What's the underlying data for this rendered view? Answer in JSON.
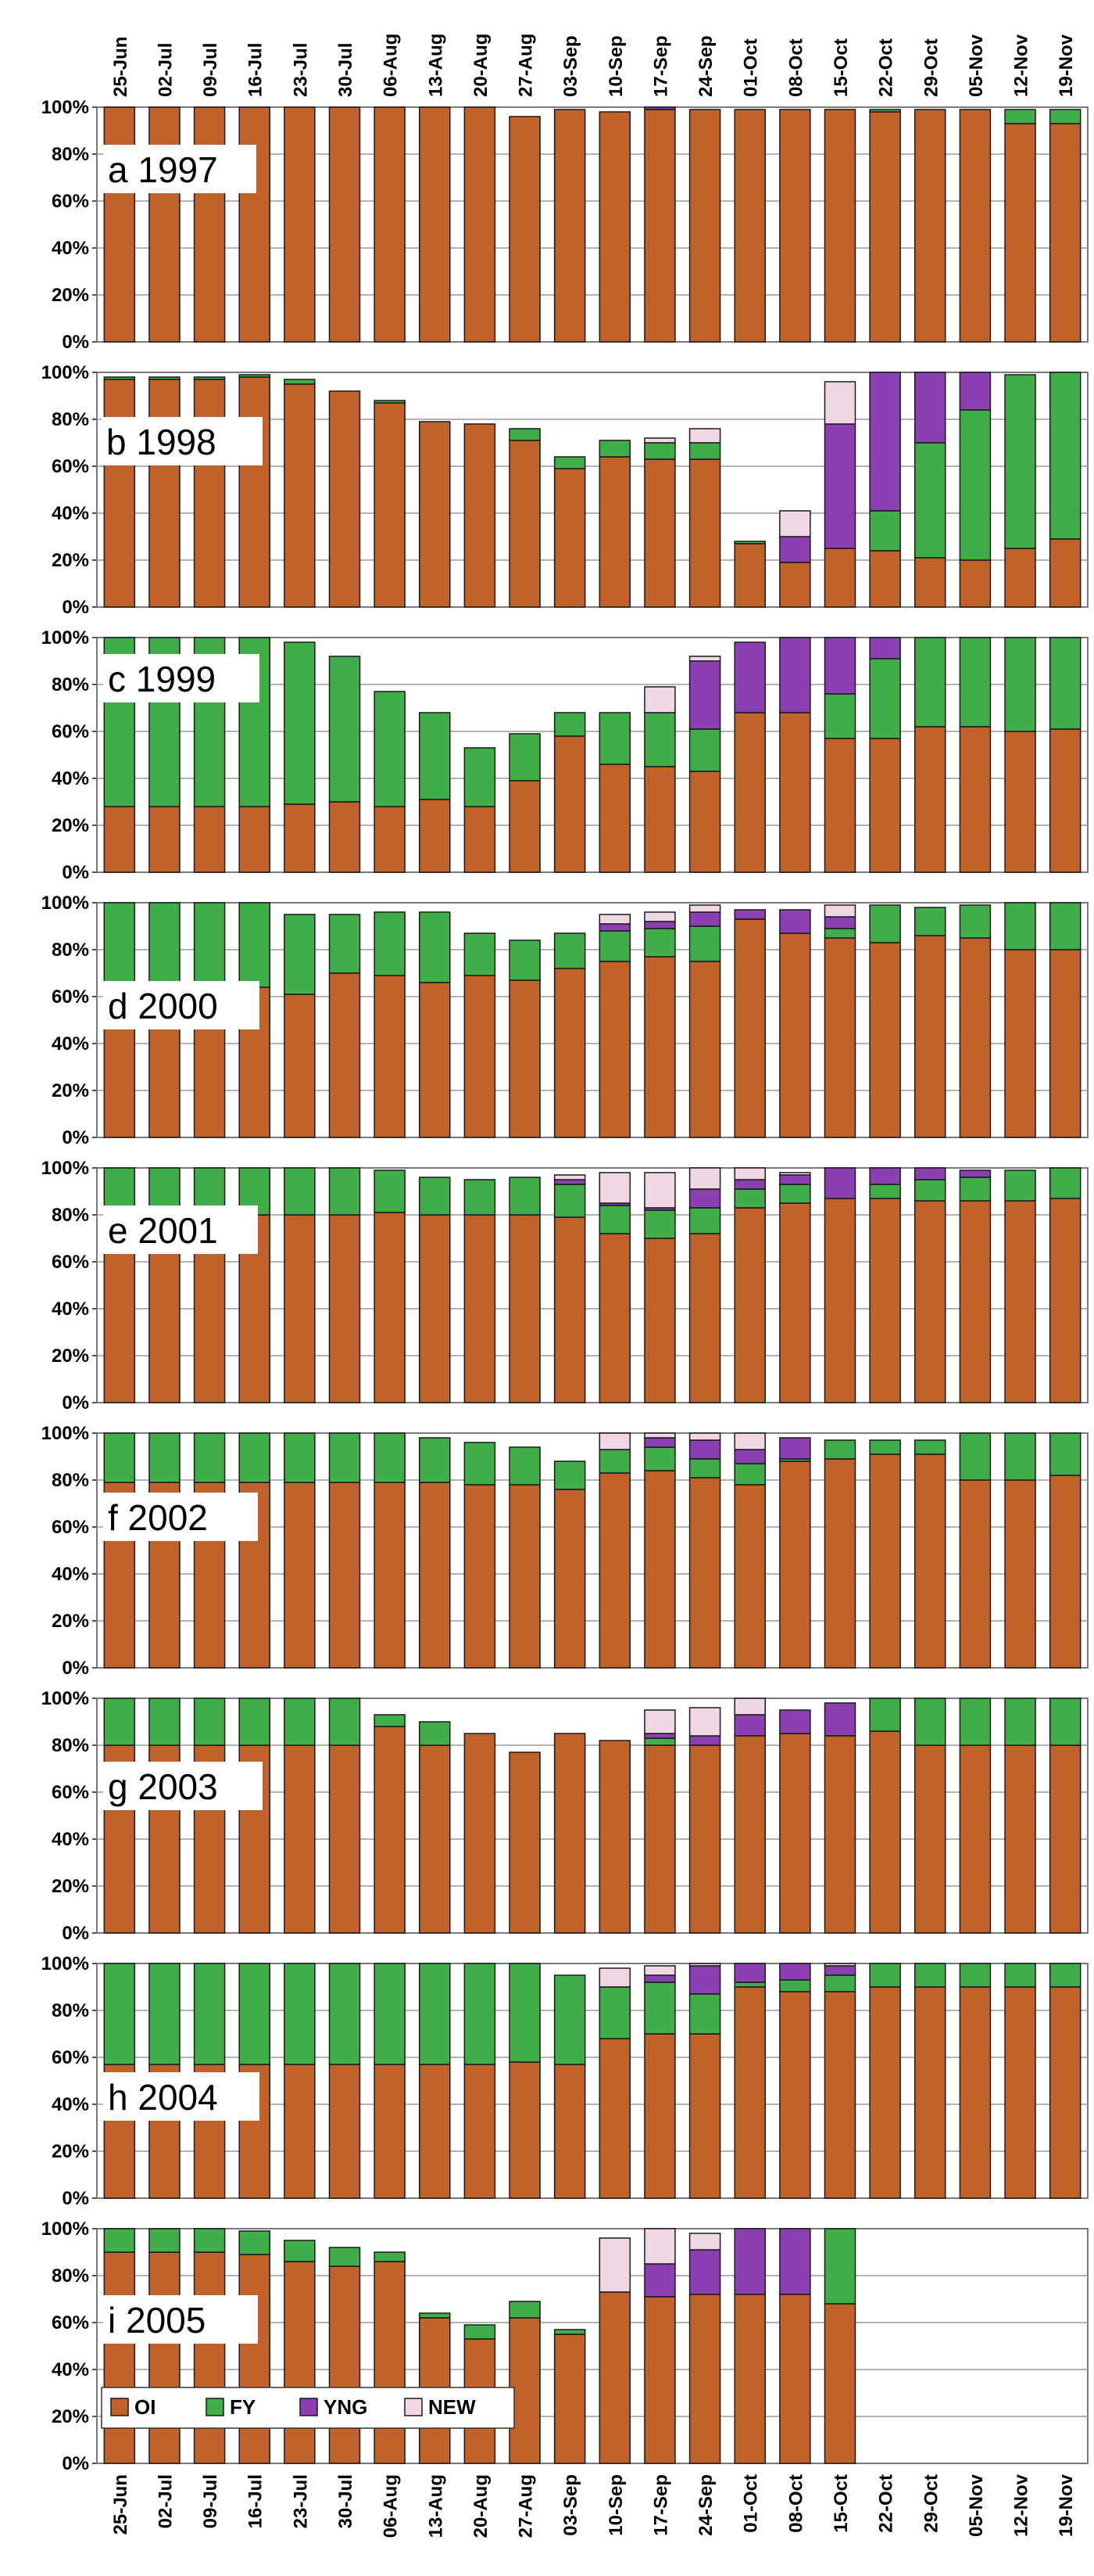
{
  "chart_data": {
    "type": "bar",
    "stacked": true,
    "categories": [
      "25-Jun",
      "02-Jul",
      "09-Jul",
      "16-Jul",
      "23-Jul",
      "30-Jul",
      "06-Aug",
      "13-Aug",
      "20-Aug",
      "27-Aug",
      "03-Sep",
      "10-Sep",
      "17-Sep",
      "24-Sep",
      "01-Oct",
      "08-Oct",
      "15-Oct",
      "22-Oct",
      "29-Oct",
      "05-Nov",
      "12-Nov",
      "19-Nov"
    ],
    "y_ticks": [
      "0%",
      "20%",
      "40%",
      "60%",
      "80%",
      "100%"
    ],
    "ylim": [
      0,
      100
    ],
    "grid": true,
    "legend": {
      "position": "bottom-left of panel i",
      "entries": [
        {
          "name": "OI",
          "color": "#c0622a"
        },
        {
          "name": "FY",
          "color": "#3fae49"
        },
        {
          "name": "YNG",
          "color": "#8c3fb0"
        },
        {
          "name": "NEW",
          "color": "#f1d6e6"
        }
      ]
    },
    "panels": [
      {
        "label": "a 1997",
        "series": [
          {
            "name": "OI",
            "values": [
              100,
              100,
              100,
              100,
              100,
              100,
              100,
              100,
              100,
              96,
              99,
              98,
              99,
              99,
              99,
              99,
              99,
              98,
              99,
              99,
              93,
              93
            ]
          },
          {
            "name": "FY",
            "values": [
              0,
              0,
              0,
              0,
              0,
              0,
              0,
              0,
              0,
              0,
              0,
              0,
              0,
              0,
              0,
              0,
              0,
              1,
              0,
              0,
              6,
              6
            ]
          },
          {
            "name": "YNG",
            "values": [
              0,
              0,
              0,
              0,
              0,
              0,
              0,
              0,
              0,
              0,
              0,
              0,
              1,
              0,
              0,
              0,
              0,
              0,
              0,
              0,
              0,
              0
            ]
          },
          {
            "name": "NEW",
            "values": [
              0,
              0,
              0,
              0,
              0,
              0,
              0,
              0,
              0,
              0,
              0,
              0,
              0,
              0,
              0,
              0,
              0,
              0,
              0,
              0,
              0,
              0
            ]
          }
        ]
      },
      {
        "label": "b 1998",
        "series": [
          {
            "name": "OI",
            "values": [
              97,
              97,
              97,
              98,
              95,
              92,
              87,
              79,
              78,
              71,
              59,
              64,
              63,
              63,
              27,
              19,
              25,
              24,
              21,
              20,
              25,
              29
            ]
          },
          {
            "name": "FY",
            "values": [
              1,
              1,
              1,
              1,
              2,
              0,
              1,
              0,
              0,
              5,
              5,
              7,
              7,
              7,
              1,
              0,
              0,
              17,
              49,
              64,
              74,
              71
            ]
          },
          {
            "name": "YNG",
            "values": [
              0,
              0,
              0,
              0,
              0,
              0,
              0,
              0,
              0,
              0,
              0,
              0,
              0,
              0,
              0,
              11,
              53,
              59,
              30,
              16,
              0,
              0
            ]
          },
          {
            "name": "NEW",
            "values": [
              0,
              0,
              0,
              0,
              0,
              0,
              0,
              0,
              0,
              0,
              0,
              0,
              2,
              6,
              0,
              11,
              18,
              0,
              0,
              0,
              0,
              0
            ]
          }
        ]
      },
      {
        "label": "c 1999",
        "series": [
          {
            "name": "OI",
            "values": [
              28,
              28,
              28,
              28,
              29,
              30,
              28,
              31,
              28,
              39,
              58,
              46,
              45,
              43,
              68,
              68,
              57,
              57,
              62,
              62,
              60,
              61
            ]
          },
          {
            "name": "FY",
            "values": [
              72,
              72,
              72,
              72,
              69,
              62,
              49,
              37,
              25,
              20,
              10,
              22,
              23,
              18,
              0,
              0,
              19,
              34,
              38,
              38,
              40,
              39
            ]
          },
          {
            "name": "YNG",
            "values": [
              0,
              0,
              0,
              0,
              0,
              0,
              0,
              0,
              0,
              0,
              0,
              0,
              0,
              29,
              30,
              32,
              24,
              9,
              0,
              0,
              0,
              0
            ]
          },
          {
            "name": "NEW",
            "values": [
              0,
              0,
              0,
              0,
              0,
              0,
              0,
              0,
              0,
              0,
              0,
              0,
              11,
              2,
              0,
              0,
              0,
              0,
              0,
              0,
              0,
              0
            ]
          }
        ]
      },
      {
        "label": "d 2000",
        "series": [
          {
            "name": "OI",
            "values": [
              63,
              64,
              64,
              64,
              61,
              70,
              69,
              66,
              69,
              67,
              72,
              75,
              77,
              75,
              93,
              87,
              85,
              83,
              86,
              85,
              80,
              80
            ]
          },
          {
            "name": "FY",
            "values": [
              37,
              36,
              36,
              36,
              34,
              25,
              27,
              30,
              18,
              17,
              15,
              13,
              12,
              15,
              0,
              0,
              4,
              16,
              12,
              14,
              20,
              20
            ]
          },
          {
            "name": "YNG",
            "values": [
              0,
              0,
              0,
              0,
              0,
              0,
              0,
              0,
              0,
              0,
              0,
              3,
              3,
              6,
              4,
              10,
              5,
              0,
              0,
              0,
              0,
              0
            ]
          },
          {
            "name": "NEW",
            "values": [
              0,
              0,
              0,
              0,
              0,
              0,
              0,
              0,
              0,
              0,
              0,
              4,
              4,
              3,
              0,
              0,
              5,
              0,
              0,
              0,
              0,
              0
            ]
          }
        ]
      },
      {
        "label": "e 2001",
        "series": [
          {
            "name": "OI",
            "values": [
              80,
              80,
              80,
              80,
              80,
              80,
              81,
              80,
              80,
              80,
              79,
              72,
              70,
              72,
              83,
              85,
              87,
              87,
              86,
              86,
              86,
              87
            ]
          },
          {
            "name": "FY",
            "values": [
              20,
              20,
              20,
              20,
              20,
              20,
              18,
              16,
              15,
              16,
              14,
              12,
              12,
              11,
              8,
              8,
              0,
              6,
              9,
              10,
              13,
              13
            ]
          },
          {
            "name": "YNG",
            "values": [
              0,
              0,
              0,
              0,
              0,
              0,
              0,
              0,
              0,
              0,
              2,
              1,
              1,
              8,
              4,
              4,
              13,
              7,
              5,
              3,
              0,
              0
            ]
          },
          {
            "name": "NEW",
            "values": [
              0,
              0,
              0,
              0,
              0,
              0,
              0,
              0,
              0,
              0,
              2,
              13,
              15,
              9,
              5,
              1,
              0,
              0,
              0,
              0,
              0,
              0
            ]
          }
        ]
      },
      {
        "label": "f 2002",
        "series": [
          {
            "name": "OI",
            "values": [
              79,
              79,
              79,
              79,
              79,
              79,
              79,
              79,
              78,
              78,
              76,
              83,
              84,
              81,
              78,
              88,
              89,
              91,
              91,
              80,
              80,
              82
            ]
          },
          {
            "name": "FY",
            "values": [
              21,
              21,
              21,
              21,
              21,
              21,
              21,
              19,
              18,
              16,
              12,
              10,
              10,
              8,
              9,
              1,
              8,
              6,
              6,
              20,
              20,
              18
            ]
          },
          {
            "name": "YNG",
            "values": [
              0,
              0,
              0,
              0,
              0,
              0,
              0,
              0,
              0,
              0,
              0,
              0,
              4,
              8,
              6,
              9,
              0,
              0,
              0,
              0,
              0,
              0
            ]
          },
          {
            "name": "NEW",
            "values": [
              0,
              0,
              0,
              0,
              0,
              0,
              0,
              0,
              0,
              0,
              0,
              7,
              2,
              3,
              7,
              0,
              0,
              0,
              0,
              0,
              0,
              0
            ]
          }
        ]
      },
      {
        "label": "g 2003",
        "series": [
          {
            "name": "OI",
            "values": [
              80,
              80,
              80,
              80,
              80,
              80,
              88,
              80,
              85,
              77,
              85,
              82,
              80,
              80,
              84,
              85,
              84,
              86,
              80,
              80,
              80,
              80
            ]
          },
          {
            "name": "FY",
            "values": [
              20,
              20,
              20,
              20,
              20,
              20,
              5,
              10,
              0,
              0,
              0,
              0,
              3,
              0,
              0,
              0,
              0,
              14,
              20,
              20,
              20,
              20
            ]
          },
          {
            "name": "YNG",
            "values": [
              0,
              0,
              0,
              0,
              0,
              0,
              0,
              0,
              0,
              0,
              0,
              0,
              2,
              4,
              9,
              10,
              14,
              0,
              0,
              0,
              0,
              0
            ]
          },
          {
            "name": "NEW",
            "values": [
              0,
              0,
              0,
              0,
              0,
              0,
              0,
              0,
              0,
              0,
              0,
              0,
              10,
              12,
              7,
              0,
              0,
              0,
              0,
              0,
              0,
              0
            ]
          }
        ]
      },
      {
        "label": "h 2004",
        "series": [
          {
            "name": "OI",
            "values": [
              57,
              57,
              57,
              57,
              57,
              57,
              57,
              57,
              57,
              58,
              57,
              68,
              70,
              70,
              90,
              88,
              88,
              90,
              90,
              90,
              90,
              90
            ]
          },
          {
            "name": "FY",
            "values": [
              43,
              43,
              43,
              43,
              43,
              43,
              43,
              43,
              43,
              42,
              38,
              22,
              22,
              17,
              2,
              5,
              7,
              10,
              10,
              10,
              10,
              10
            ]
          },
          {
            "name": "YNG",
            "values": [
              0,
              0,
              0,
              0,
              0,
              0,
              0,
              0,
              0,
              0,
              0,
              0,
              3,
              12,
              8,
              7,
              4,
              0,
              0,
              0,
              0,
              0
            ]
          },
          {
            "name": "NEW",
            "values": [
              0,
              0,
              0,
              0,
              0,
              0,
              0,
              0,
              0,
              0,
              0,
              8,
              4,
              1,
              0,
              0,
              1,
              0,
              0,
              0,
              0,
              0
            ]
          }
        ]
      },
      {
        "label": "i 2005",
        "series": [
          {
            "name": "OI",
            "values": [
              90,
              90,
              90,
              89,
              86,
              84,
              86,
              62,
              53,
              62,
              55,
              73,
              71,
              72,
              72,
              72,
              68,
              0,
              0,
              0,
              0,
              0
            ]
          },
          {
            "name": "FY",
            "values": [
              10,
              10,
              10,
              10,
              9,
              8,
              4,
              2,
              6,
              7,
              2,
              0,
              0,
              0,
              0,
              0,
              32,
              0,
              0,
              0,
              0,
              0
            ]
          },
          {
            "name": "YNG",
            "values": [
              0,
              0,
              0,
              0,
              0,
              0,
              0,
              0,
              0,
              0,
              0,
              0,
              14,
              19,
              28,
              28,
              0,
              0,
              0,
              0,
              0,
              0
            ]
          },
          {
            "name": "NEW",
            "values": [
              0,
              0,
              0,
              0,
              0,
              0,
              0,
              0,
              0,
              0,
              0,
              23,
              15,
              7,
              0,
              0,
              0,
              0,
              0,
              0,
              0,
              0
            ]
          }
        ]
      }
    ]
  }
}
